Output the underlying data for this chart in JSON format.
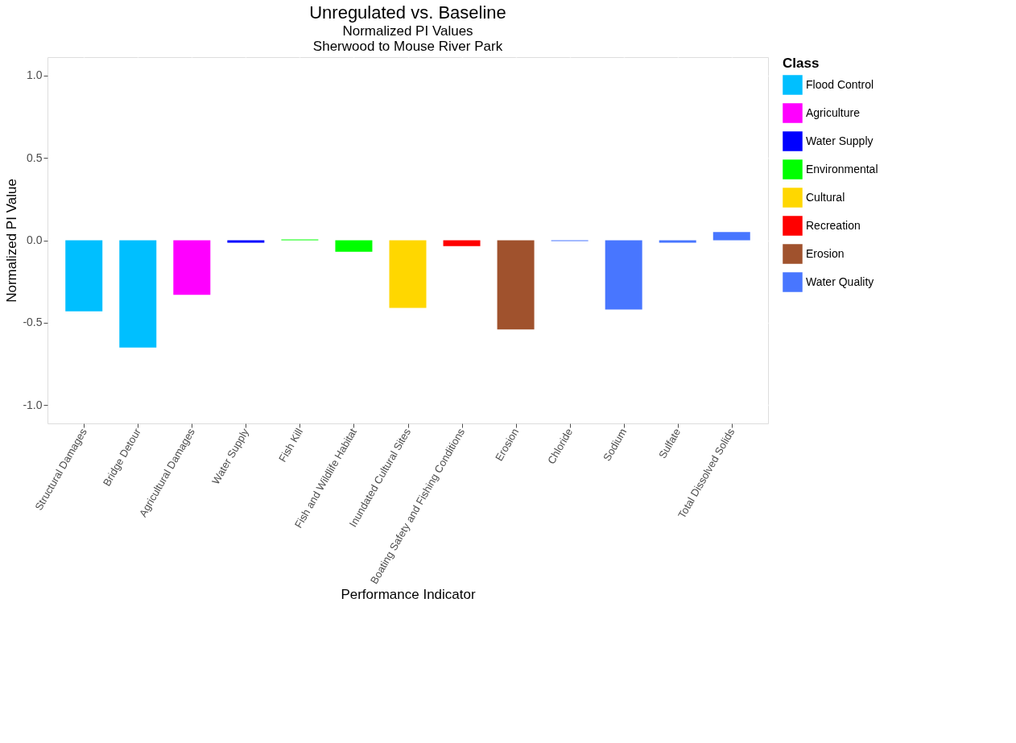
{
  "chart_data": {
    "type": "bar",
    "title": "Unregulated vs. Baseline",
    "subtitle": "Normalized PI Values\nSherwood to Mouse River Park",
    "xlabel": "Performance Indicator",
    "ylabel": "Normalized PI Value",
    "legend_title": "Class",
    "categories": [
      "Structural Damages",
      "Bridge Detour",
      "Agricultural Damages",
      "Water Supply",
      "Fish Kill",
      "Fish and Wildlife Habitat",
      "Inundated Cultural Sites",
      "Boating Safety and Fishing Conditions",
      "Erosion",
      "Chloride",
      "Sodium",
      "Sulfate",
      "Total Dissolved Solids"
    ],
    "series": [
      {
        "name": "Flood Control",
        "color": "#00bfff",
        "values": [
          -0.43,
          -0.65,
          null,
          null,
          null,
          null,
          null,
          null,
          null,
          null,
          null,
          null,
          null
        ]
      },
      {
        "name": "Agriculture",
        "color": "#ff00ff",
        "values": [
          null,
          null,
          -0.33,
          null,
          null,
          null,
          null,
          null,
          null,
          null,
          null,
          null,
          null
        ]
      },
      {
        "name": "Water Supply",
        "color": "#0000ff",
        "values": [
          null,
          null,
          null,
          -0.015,
          null,
          null,
          null,
          null,
          null,
          null,
          null,
          null,
          null
        ]
      },
      {
        "name": "Environmental",
        "color": "#00ff00",
        "values": [
          null,
          null,
          null,
          null,
          0.005,
          -0.07,
          null,
          null,
          null,
          null,
          null,
          null,
          null
        ]
      },
      {
        "name": "Cultural",
        "color": "#ffd700",
        "values": [
          null,
          null,
          null,
          null,
          null,
          null,
          -0.41,
          null,
          null,
          null,
          null,
          null,
          null
        ]
      },
      {
        "name": "Recreation",
        "color": "#ff0000",
        "values": [
          null,
          null,
          null,
          null,
          null,
          null,
          null,
          -0.035,
          null,
          null,
          null,
          null,
          null
        ]
      },
      {
        "name": "Erosion",
        "color": "#a0522d",
        "values": [
          null,
          null,
          null,
          null,
          null,
          null,
          null,
          null,
          -0.54,
          null,
          null,
          null,
          null
        ]
      },
      {
        "name": "Water Quality",
        "color": "#4876ff",
        "values": [
          null,
          null,
          null,
          null,
          null,
          null,
          null,
          null,
          null,
          -0.005,
          -0.42,
          -0.015,
          0.05
        ]
      }
    ],
    "ylim": [
      -1.11,
      1.11
    ],
    "yticks": [
      {
        "value": -1,
        "label": "-1.0"
      },
      {
        "value": -0.5,
        "label": "-0.5"
      },
      {
        "value": 0,
        "label": "0.0"
      },
      {
        "value": 0.5,
        "label": "0.5"
      },
      {
        "value": 1,
        "label": "1.0"
      }
    ],
    "grid": true,
    "legend": "right"
  }
}
